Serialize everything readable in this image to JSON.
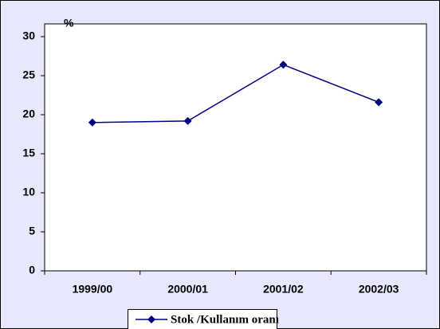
{
  "chart_data": {
    "type": "line",
    "y_label": "%",
    "categories": [
      "1999/00",
      "2000/01",
      "2001/02",
      "2002/03"
    ],
    "series": [
      {
        "name": "Stok /Kullanım oranı",
        "color": "#000080",
        "values": [
          19.0,
          19.2,
          26.4,
          21.6
        ]
      }
    ],
    "ylim": [
      0,
      30
    ],
    "yticks": [
      0,
      5,
      10,
      15,
      20,
      25,
      30
    ],
    "grid": false,
    "legend": "bottom"
  }
}
